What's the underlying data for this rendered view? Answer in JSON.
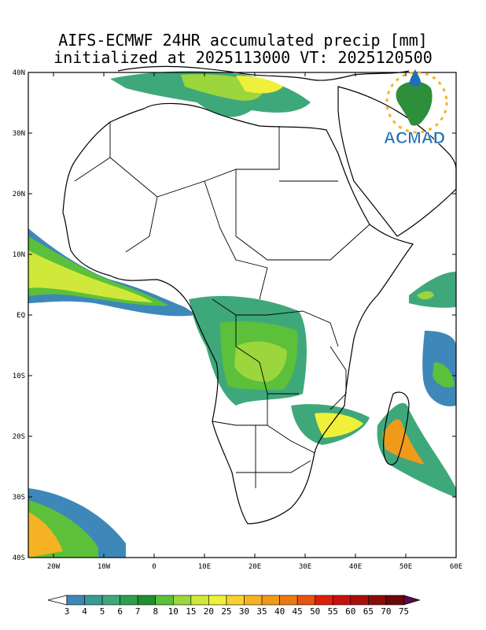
{
  "title_line1": "AIFS-ECMWF 24HR accumulated precip [mm]",
  "title_line2": "initialized at 2025113000 VT: 2025120500",
  "logo_text": "ACMAD",
  "lat_labels": [
    "40N",
    "30N",
    "20N",
    "10N",
    "EQ",
    "10S",
    "20S",
    "30S",
    "40S"
  ],
  "lon_labels": [
    "20W",
    "10W",
    "0",
    "10E",
    "20E",
    "30E",
    "40E",
    "50E",
    "60E"
  ],
  "extent": {
    "lon": [
      -25,
      60
    ],
    "lat": [
      -40,
      40
    ]
  },
  "colorbar": {
    "labels": [
      "3",
      "4",
      "5",
      "6",
      "7",
      "8",
      "10",
      "15",
      "20",
      "25",
      "30",
      "35",
      "40",
      "45",
      "50",
      "55",
      "60",
      "65",
      "70",
      "75"
    ],
    "colors": [
      "#3d88b8",
      "#3a9a94",
      "#3fa87a",
      "#2e9f4a",
      "#1f8f2f",
      "#5cc03a",
      "#9ad63c",
      "#cfe83a",
      "#f0f03a",
      "#f5d22e",
      "#f5b323",
      "#f09a1a",
      "#ec7a14",
      "#e65410",
      "#dd1f0c",
      "#c8100c",
      "#a80f0c",
      "#8a0b0a",
      "#6a0808",
      "#5a0a4a"
    ]
  },
  "colors": {
    "coast": "#000000",
    "light": "#3d88b8",
    "mid": "#2e9f4a",
    "green": "#9ad63c",
    "yellow": "#f0f03a",
    "orange": "#f09a1a"
  }
}
